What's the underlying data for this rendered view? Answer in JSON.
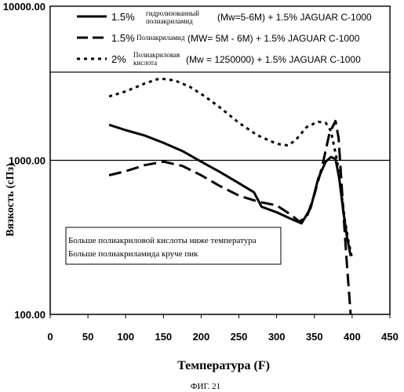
{
  "chart_data": {
    "type": "line",
    "xlabel": "Температура (F)",
    "ylabel": "Вязкость (сПз)",
    "xlim": [
      0,
      450
    ],
    "ylim": [
      100,
      10000
    ],
    "yscale": "log",
    "xticks": [
      "0",
      "50",
      "100",
      "150",
      "200",
      "250",
      "300",
      "350",
      "400",
      "450"
    ],
    "yticks": [
      "100.00",
      "1000.00",
      "10000.00"
    ],
    "grid": "horizontal line at 1000",
    "legend_position": "top",
    "series": [
      {
        "name_parts": [
          "1.5%",
          "гидролизованный",
          "полиакриламид",
          "(Mw=5-6M) + 1.5% JAGUAR C-1000"
        ],
        "dash": "solid",
        "x": [
          78,
          100,
          125,
          150,
          175,
          200,
          225,
          250,
          270,
          280,
          300,
          320,
          333,
          345,
          355,
          365,
          372,
          378,
          383,
          388,
          393,
          398
        ],
        "y": [
          1700,
          1570,
          1450,
          1300,
          1150,
          980,
          840,
          710,
          620,
          500,
          460,
          415,
          390,
          490,
          760,
          980,
          1050,
          1020,
          760,
          480,
          320,
          240
        ]
      },
      {
        "name_parts": [
          "1.5%",
          "Полиакриламид",
          "(MW= 5M - 6M) + 1.5% JAGUAR C-1000"
        ],
        "dash": "long-dash",
        "x": [
          78,
          100,
          125,
          150,
          175,
          200,
          225,
          250,
          275,
          300,
          320,
          330,
          340,
          350,
          360,
          370,
          378,
          382,
          386,
          392,
          398
        ],
        "y": [
          800,
          850,
          930,
          980,
          920,
          800,
          680,
          590,
          540,
          510,
          440,
          400,
          430,
          600,
          900,
          1500,
          1800,
          1400,
          700,
          250,
          100
        ]
      },
      {
        "name_parts": [
          "2%",
          "Полиакриловая",
          "кислота",
          "(Mw = 1250000) + 1.5% JAGUAR C-1000"
        ],
        "dash": "dotted",
        "x": [
          78,
          100,
          125,
          145,
          165,
          185,
          205,
          225,
          250,
          275,
          300,
          315,
          325,
          340,
          355,
          365,
          372,
          380,
          385,
          390,
          395,
          400
        ],
        "y": [
          2600,
          2800,
          3150,
          3400,
          3300,
          3000,
          2600,
          2200,
          1750,
          1450,
          1280,
          1250,
          1350,
          1650,
          1780,
          1750,
          1550,
          1000,
          650,
          420,
          300,
          230
        ]
      }
    ],
    "annotations": [
      "Больше полиакриловой кислоты ниже температура",
      "Больше полиакриламида круче пик"
    ]
  },
  "caption": "ФИГ. 21"
}
